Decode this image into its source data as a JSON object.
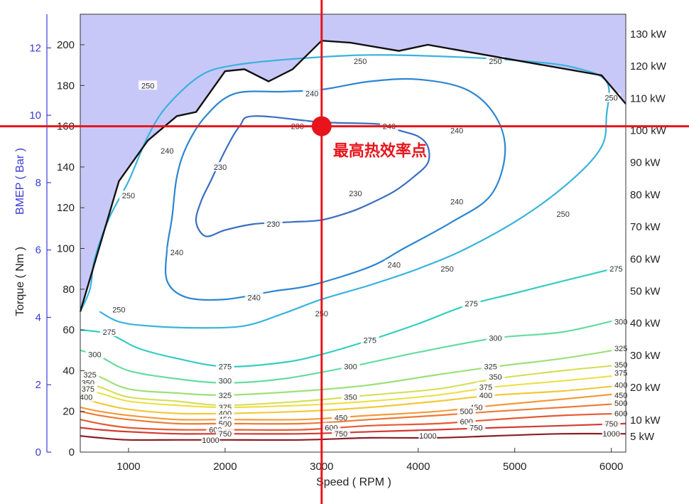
{
  "chart_data": {
    "type": "contour",
    "annotation": "最高热效率点",
    "annotation_point": {
      "speed_rpm": 3000,
      "torque_nm": 160
    },
    "colors": {
      "infeasible_region": "#c8c8f8",
      "wot_line": "#111111",
      "marker_line": "#e8141b",
      "bmep_axis": "#3b3bd6"
    },
    "x_axis": {
      "label": "Speed ( RPM )",
      "range": [
        500,
        6150
      ],
      "ticks": [
        1000,
        2000,
        3000,
        4000,
        5000,
        6000
      ]
    },
    "y_axis_left": {
      "label": "Torque ( Nm )",
      "range": [
        0,
        215
      ],
      "ticks": [
        0,
        20,
        40,
        60,
        80,
        100,
        120,
        140,
        160,
        180,
        200
      ]
    },
    "y_axis_bmep": {
      "label": "BMEP ( Bar )",
      "range": [
        0,
        13
      ],
      "ticks": [
        0,
        2,
        4,
        6,
        8,
        10,
        12
      ]
    },
    "power_labels": [
      "5 kW",
      "10 kW",
      "20 kW",
      "30 kW",
      "40 kW",
      "50 kW",
      "60 kW",
      "70 kW",
      "80 kW",
      "90 kW",
      "100 kW",
      "110 kW",
      "120 kW",
      "130 kW"
    ],
    "wot_curve": [
      [
        500,
        69
      ],
      [
        900,
        133
      ],
      [
        1200,
        153
      ],
      [
        1500,
        165
      ],
      [
        1700,
        167
      ],
      [
        2000,
        187
      ],
      [
        2200,
        188
      ],
      [
        2450,
        182
      ],
      [
        2700,
        188
      ],
      [
        3000,
        202
      ],
      [
        3300,
        201
      ],
      [
        3800,
        197
      ],
      [
        4100,
        200
      ],
      [
        5900,
        185
      ],
      [
        6150,
        171
      ]
    ],
    "contours": [
      {
        "level": 230,
        "color": "#3a6ec2",
        "label_positions": [
          [
            1950,
            140
          ],
          [
            2500,
            112
          ],
          [
            2750,
            160
          ],
          [
            3350,
            127
          ]
        ],
        "points": [
          [
            2300,
            165
          ],
          [
            3000,
            162
          ],
          [
            3600,
            161
          ],
          [
            3800,
            158
          ],
          [
            4000,
            155
          ],
          [
            4100,
            150
          ],
          [
            4100,
            142
          ],
          [
            3950,
            135
          ],
          [
            3750,
            128
          ],
          [
            3500,
            122
          ],
          [
            3300,
            118
          ],
          [
            3000,
            114
          ],
          [
            2700,
            113
          ],
          [
            2300,
            112
          ],
          [
            2000,
            109
          ],
          [
            1800,
            106
          ],
          [
            1700,
            113
          ],
          [
            1750,
            123
          ],
          [
            1850,
            133
          ],
          [
            2000,
            148
          ],
          [
            2150,
            160
          ]
        ],
        "closed": true
      },
      {
        "level": 240,
        "color": "#2b86d1",
        "label_positions": [
          [
            1400,
            148
          ],
          [
            1500,
            98
          ],
          [
            2900,
            176
          ],
          [
            3700,
            160
          ],
          [
            4400,
            158
          ],
          [
            4400,
            123
          ],
          [
            3750,
            92
          ],
          [
            2300,
            76
          ]
        ],
        "points": [
          [
            2100,
            176
          ],
          [
            2600,
            177
          ],
          [
            3000,
            178
          ],
          [
            3500,
            182
          ],
          [
            4000,
            183
          ],
          [
            4500,
            178
          ],
          [
            4800,
            165
          ],
          [
            4900,
            147
          ],
          [
            4750,
            126
          ],
          [
            4350,
            113
          ],
          [
            3850,
            100
          ],
          [
            3500,
            91
          ],
          [
            2900,
            82
          ],
          [
            2500,
            79
          ],
          [
            2000,
            75
          ],
          [
            1600,
            76
          ],
          [
            1400,
            84
          ],
          [
            1400,
            100
          ],
          [
            1450,
            115
          ],
          [
            1500,
            135
          ],
          [
            1600,
            150
          ],
          [
            1800,
            165
          ]
        ],
        "closed": true
      },
      {
        "level": 250,
        "color": "#39b3dd",
        "label_positions": [
          [
            1000,
            126
          ],
          [
            1200,
            180
          ],
          [
            3400,
            192
          ],
          [
            4800,
            192
          ],
          [
            6000,
            174
          ],
          [
            5500,
            117
          ],
          [
            4300,
            90
          ],
          [
            3000,
            68
          ],
          [
            900,
            70
          ]
        ],
        "points": [
          [
            500,
            69
          ],
          [
            600,
            80
          ],
          [
            650,
            95
          ],
          [
            800,
            115
          ],
          [
            1000,
            133
          ],
          [
            1200,
            155
          ],
          [
            1400,
            170
          ],
          [
            1750,
            185
          ],
          [
            2100,
            190
          ],
          [
            2700,
            193
          ],
          [
            3500,
            195
          ],
          [
            4400,
            194
          ],
          [
            5100,
            192
          ],
          [
            5600,
            189
          ],
          [
            5950,
            182
          ],
          [
            5950,
            165
          ],
          [
            5900,
            150
          ],
          [
            5600,
            134
          ],
          [
            5100,
            116
          ],
          [
            4500,
            100
          ],
          [
            4000,
            90
          ],
          [
            3500,
            82
          ],
          [
            3000,
            75
          ],
          [
            2600,
            68
          ],
          [
            2200,
            62
          ],
          [
            1700,
            61
          ],
          [
            1200,
            62
          ],
          [
            900,
            64
          ],
          [
            700,
            69
          ]
        ],
        "closed": false
      },
      {
        "level": 275,
        "color": "#35cdc0",
        "label_positions": [
          [
            800,
            59
          ],
          [
            2000,
            42
          ],
          [
            3500,
            55
          ],
          [
            4550,
            73
          ],
          [
            6050,
            90
          ]
        ],
        "points": [
          [
            500,
            60
          ],
          [
            800,
            58
          ],
          [
            1100,
            51
          ],
          [
            1500,
            46
          ],
          [
            2000,
            42
          ],
          [
            2600,
            44
          ],
          [
            3000,
            48
          ],
          [
            3500,
            55
          ],
          [
            4000,
            63
          ],
          [
            4500,
            72
          ],
          [
            5000,
            78
          ],
          [
            5500,
            84
          ],
          [
            6100,
            91
          ]
        ],
        "closed": false
      },
      {
        "level": 300,
        "color": "#66dca0",
        "label_positions": [
          [
            650,
            48
          ],
          [
            2000,
            35
          ],
          [
            3300,
            42
          ],
          [
            4800,
            56
          ],
          [
            6100,
            64
          ]
        ],
        "points": [
          [
            500,
            50
          ],
          [
            700,
            47
          ],
          [
            1000,
            40
          ],
          [
            1500,
            36
          ],
          [
            2000,
            34
          ],
          [
            2600,
            36
          ],
          [
            3300,
            42
          ],
          [
            4000,
            49
          ],
          [
            4800,
            56
          ],
          [
            5500,
            59
          ],
          [
            6150,
            66
          ]
        ],
        "closed": false
      },
      {
        "level": 325,
        "color": "#9de07a",
        "label_positions": [
          [
            600,
            38
          ],
          [
            2000,
            28
          ],
          [
            4750,
            42
          ],
          [
            6100,
            51
          ]
        ],
        "points": [
          [
            500,
            40
          ],
          [
            700,
            37
          ],
          [
            1000,
            31
          ],
          [
            1500,
            29
          ],
          [
            2000,
            28
          ],
          [
            2800,
            30
          ],
          [
            3500,
            33
          ],
          [
            4200,
            38
          ],
          [
            4800,
            42
          ],
          [
            5500,
            46
          ],
          [
            6150,
            51
          ]
        ],
        "closed": false
      },
      {
        "level": 350,
        "color": "#d6df5a",
        "label_positions": [
          [
            580,
            34
          ],
          [
            2000,
            23
          ],
          [
            3300,
            27
          ],
          [
            4800,
            37
          ],
          [
            6100,
            43
          ]
        ],
        "points": [
          [
            500,
            34
          ],
          [
            700,
            32
          ],
          [
            1000,
            27
          ],
          [
            1500,
            25
          ],
          [
            2000,
            23
          ],
          [
            2800,
            25
          ],
          [
            3500,
            28
          ],
          [
            4200,
            31
          ],
          [
            4800,
            36
          ],
          [
            5500,
            40
          ],
          [
            6150,
            43
          ]
        ],
        "closed": false
      },
      {
        "level": 375,
        "color": "#ece04a",
        "label_positions": [
          [
            580,
            31
          ],
          [
            2000,
            22
          ],
          [
            4700,
            32
          ],
          [
            6100,
            39
          ]
        ],
        "points": [
          [
            500,
            31
          ],
          [
            700,
            29
          ],
          [
            1000,
            25
          ],
          [
            1500,
            23
          ],
          [
            2000,
            22
          ],
          [
            2800,
            23
          ],
          [
            3500,
            25
          ],
          [
            4200,
            28
          ],
          [
            4800,
            32
          ],
          [
            5500,
            35
          ],
          [
            6150,
            38
          ]
        ],
        "closed": false
      },
      {
        "level": 400,
        "color": "#f2c83a",
        "label_positions": [
          [
            560,
            27
          ],
          [
            2000,
            19
          ],
          [
            4700,
            28
          ],
          [
            6100,
            33
          ]
        ],
        "points": [
          [
            500,
            27
          ],
          [
            700,
            24
          ],
          [
            1000,
            21
          ],
          [
            1500,
            19
          ],
          [
            2000,
            19
          ],
          [
            2800,
            20
          ],
          [
            3500,
            22
          ],
          [
            4200,
            25
          ],
          [
            4800,
            28
          ],
          [
            5500,
            30
          ],
          [
            6150,
            33
          ]
        ],
        "closed": false
      },
      {
        "level": 450,
        "color": "#f39a3a",
        "label_positions": [
          [
            2000,
            16
          ],
          [
            3200,
            17
          ],
          [
            4600,
            22
          ],
          [
            6100,
            28
          ]
        ],
        "points": [
          [
            500,
            22
          ],
          [
            700,
            20
          ],
          [
            1000,
            18
          ],
          [
            1500,
            16
          ],
          [
            2000,
            16
          ],
          [
            2800,
            16
          ],
          [
            3500,
            18
          ],
          [
            4200,
            20
          ],
          [
            4800,
            23
          ],
          [
            5500,
            26
          ],
          [
            6150,
            29
          ]
        ],
        "closed": false
      },
      {
        "level": 500,
        "color": "#ee7a36",
        "label_positions": [
          [
            2000,
            14
          ],
          [
            4500,
            20
          ],
          [
            6100,
            24
          ]
        ],
        "points": [
          [
            500,
            20
          ],
          [
            700,
            18
          ],
          [
            1000,
            16
          ],
          [
            1500,
            14
          ],
          [
            2000,
            14
          ],
          [
            2800,
            14
          ],
          [
            3500,
            16
          ],
          [
            4200,
            18
          ],
          [
            4800,
            20
          ],
          [
            5500,
            22
          ],
          [
            6150,
            24
          ]
        ],
        "closed": false
      },
      {
        "level": 600,
        "color": "#e55a34",
        "label_positions": [
          [
            1900,
            11
          ],
          [
            3100,
            12
          ],
          [
            4500,
            15
          ],
          [
            6100,
            19
          ]
        ],
        "points": [
          [
            500,
            16
          ],
          [
            700,
            14
          ],
          [
            1000,
            12
          ],
          [
            1500,
            11
          ],
          [
            2000,
            11
          ],
          [
            2800,
            11
          ],
          [
            3500,
            13
          ],
          [
            4200,
            14
          ],
          [
            4800,
            16
          ],
          [
            5500,
            18
          ],
          [
            6150,
            19
          ]
        ],
        "closed": false
      },
      {
        "level": 750,
        "color": "#d23a32",
        "label_positions": [
          [
            2000,
            9
          ],
          [
            3200,
            9
          ],
          [
            4600,
            12
          ],
          [
            6000,
            14
          ]
        ],
        "points": [
          [
            500,
            12
          ],
          [
            700,
            11
          ],
          [
            1000,
            10
          ],
          [
            1500,
            9
          ],
          [
            2000,
            9
          ],
          [
            2800,
            9
          ],
          [
            3500,
            10
          ],
          [
            4200,
            11
          ],
          [
            4800,
            12
          ],
          [
            5500,
            13
          ],
          [
            6150,
            14
          ]
        ],
        "closed": false
      },
      {
        "level": 1000,
        "color": "#8a1e26",
        "label_positions": [
          [
            1850,
            6
          ],
          [
            4100,
            8
          ],
          [
            6000,
            9
          ]
        ],
        "points": [
          [
            500,
            8
          ],
          [
            700,
            7
          ],
          [
            1000,
            6
          ],
          [
            1500,
            6
          ],
          [
            2000,
            6
          ],
          [
            2800,
            6
          ],
          [
            3500,
            7
          ],
          [
            4200,
            7
          ],
          [
            4800,
            8
          ],
          [
            5500,
            9
          ],
          [
            6150,
            9
          ]
        ],
        "closed": false
      }
    ]
  }
}
